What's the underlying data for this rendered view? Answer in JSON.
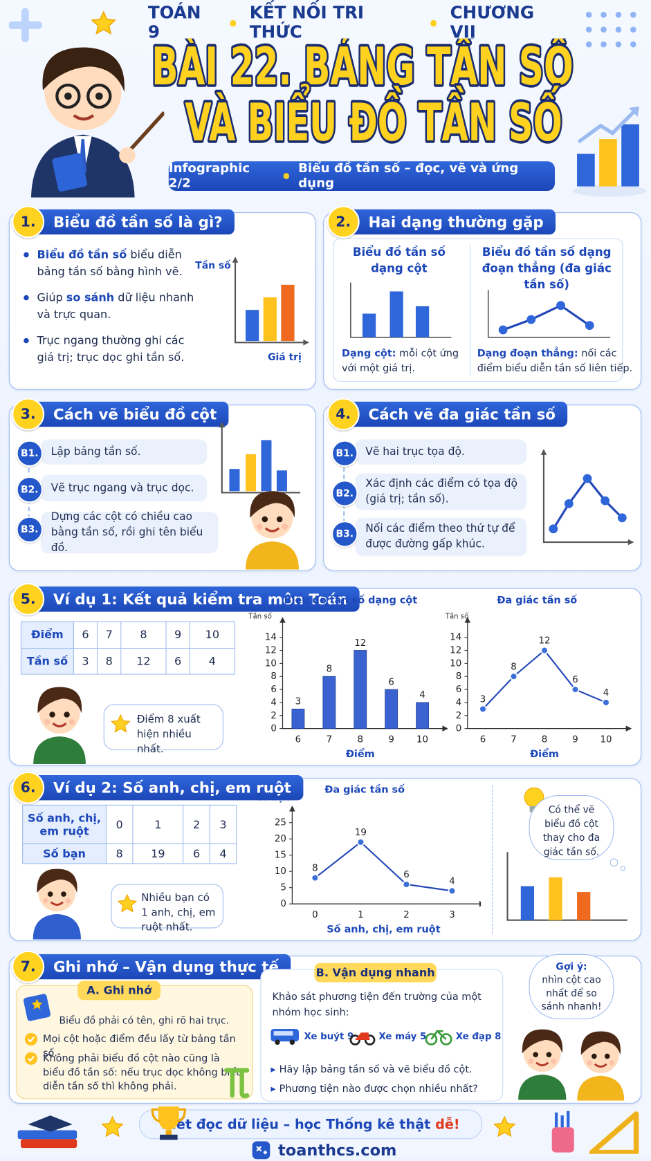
{
  "header": {
    "subject": "TOÁN 9",
    "book": "KẾT NỐI TRI THỨC",
    "chapter": "CHƯƠNG VII",
    "title_line1": "BÀI 22.  BẢNG TẦN SỐ",
    "title_line2": "VÀ BIỂU ĐỒ TẦN SỐ",
    "badge": "Infographic 2/2",
    "tagline": "Biểu đồ tần số – đọc, vẽ và ứng dụng"
  },
  "section1": {
    "number": "1.",
    "title": "Biểu đồ tần số là gì?",
    "bullets": [
      [
        {
          "text": "Biểu đồ tần số",
          "strong": true
        },
        {
          "text": " biểu diễn bảng tần số bằng hình vẽ."
        }
      ],
      [
        {
          "text": "Giúp "
        },
        {
          "text": "so sánh",
          "strong": true
        },
        {
          "text": " dữ liệu nhanh và trực quan."
        }
      ],
      [
        {
          "text": "Trục ngang thường ghi các giá trị; trục dọc ghi tần số."
        }
      ]
    ],
    "icon_y_label": "Tần số",
    "icon_x_label": "Giá trị"
  },
  "section2": {
    "number": "2.",
    "title": "Hai dạng thường gặp",
    "kinds": [
      {
        "title": "Biểu đồ tần số dạng cột",
        "note": [
          {
            "text": "Dạng cột:",
            "strong": true
          },
          {
            "text": " mỗi cột ứng với một giá trị."
          }
        ]
      },
      {
        "title": "Biểu đồ tần số dạng đoạn thẳng (đa giác tần số)",
        "note": [
          {
            "text": "Dạng đoạn thẳng:",
            "strong": true
          },
          {
            "text": " nối các điểm biểu diễn tần số liên tiếp."
          }
        ]
      }
    ]
  },
  "section3": {
    "number": "3.",
    "title": "Cách vẽ biểu đồ cột",
    "steps": [
      {
        "label": "B1.",
        "text": "Lập bảng tần số."
      },
      {
        "label": "B2.",
        "text": "Vẽ trục ngang và trục dọc."
      },
      {
        "label": "B3.",
        "text": "Dựng các cột có chiều cao bằng tần số, rồi ghi tên biểu đồ."
      }
    ]
  },
  "section4": {
    "number": "4.",
    "title": "Cách vẽ đa giác tần số",
    "steps": [
      {
        "label": "B1.",
        "text": "Vẽ hai trục tọa độ."
      },
      {
        "label": "B2.",
        "text": "Xác định các điểm có tọa độ (giá trị; tần số)."
      },
      {
        "label": "B3.",
        "text": "Nối các điểm theo thứ tự để được đường gấp khúc."
      }
    ]
  },
  "section5": {
    "number": "5.",
    "title": "Ví dụ 1: Kết quả kiểm tra môn Toán",
    "table": {
      "rows": [
        [
          "Điểm",
          6,
          7,
          8,
          9,
          10
        ],
        [
          "Tần số",
          3,
          8,
          12,
          6,
          4
        ]
      ]
    },
    "speech": "Điểm 8 xuất hiện nhiều nhất."
  },
  "section6": {
    "number": "6.",
    "title": "Ví dụ 2: Số anh, chị, em ruột",
    "table": {
      "rows": [
        [
          "Số anh, chị, em ruột",
          0,
          1,
          2,
          3
        ],
        [
          "Số bạn",
          8,
          19,
          6,
          4
        ]
      ]
    },
    "speech": "Nhiều bạn có 1 anh, chị, em ruột nhất.",
    "thought": "Có thể vẽ biểu đồ cột thay cho đa giác tần số."
  },
  "section7": {
    "number": "7.",
    "title": "Ghi nhớ – Vận dụng thực tế",
    "remember": {
      "title": "A. Ghi nhớ",
      "items": [
        "Biểu đồ phải có tên, ghi rõ hai trục.",
        "Mọi cột hoặc điểm đều lấy từ bảng tần số.",
        "Không phải biểu đồ cột nào cũng là biểu đồ tần số: nếu trục dọc không biểu diễn tần số thì không phải."
      ]
    },
    "practice": {
      "title": "B. Vận dụng nhanh",
      "intro": "Khảo sát phương tiện đến trường của một nhóm học sinh:",
      "options": [
        "Xe buýt 9",
        "Xe máy 5",
        "Xe đạp 8"
      ],
      "tasks": [
        "Hãy lập bảng tần số và vẽ biểu đồ cột.",
        "Phương tiện nào được chọn nhiều nhất?"
      ]
    },
    "hint_label": "Gợi ý:",
    "hint": "nhìn cột cao nhất để so sánh nhanh!"
  },
  "footer": {
    "slogan": [
      {
        "text": "Biết đọc dữ liệu – học Thống kê thật "
      },
      {
        "text": "dễ!",
        "accent": true
      }
    ],
    "site": "toanthcs.com"
  },
  "chart_data": [
    {
      "type": "bar",
      "title": "Biểu đồ tần số dạng cột",
      "x_label": "Điểm",
      "y_label": "Tần số",
      "categories": [
        "6",
        "7",
        "8",
        "9",
        "10"
      ],
      "values": [
        3,
        8,
        12,
        6,
        4
      ],
      "color": "#3a62d0",
      "ylim": [
        0,
        16
      ],
      "yticks": [
        0,
        2,
        4,
        6,
        8,
        10,
        12,
        14
      ]
    },
    {
      "type": "line",
      "title": "Đa giác tần số",
      "x_label": "Điểm",
      "y_label": "Tần số",
      "categories": [
        "6",
        "7",
        "8",
        "9",
        "10"
      ],
      "values": [
        3,
        8,
        12,
        6,
        4
      ],
      "color": "#2448b8",
      "ylim": [
        0,
        16
      ],
      "yticks": [
        0,
        2,
        4,
        6,
        8,
        10,
        12,
        14
      ]
    },
    {
      "type": "line",
      "title": "Đa giác tần số",
      "x_label": "Số anh, chị, em ruột",
      "y_label": "Số bạn",
      "categories": [
        "0",
        "1",
        "2",
        "3"
      ],
      "values": [
        8,
        19,
        6,
        4
      ],
      "color": "#2448b8",
      "ylim": [
        0,
        28
      ],
      "yticks": [
        0,
        5,
        10,
        15,
        20,
        25
      ]
    }
  ]
}
